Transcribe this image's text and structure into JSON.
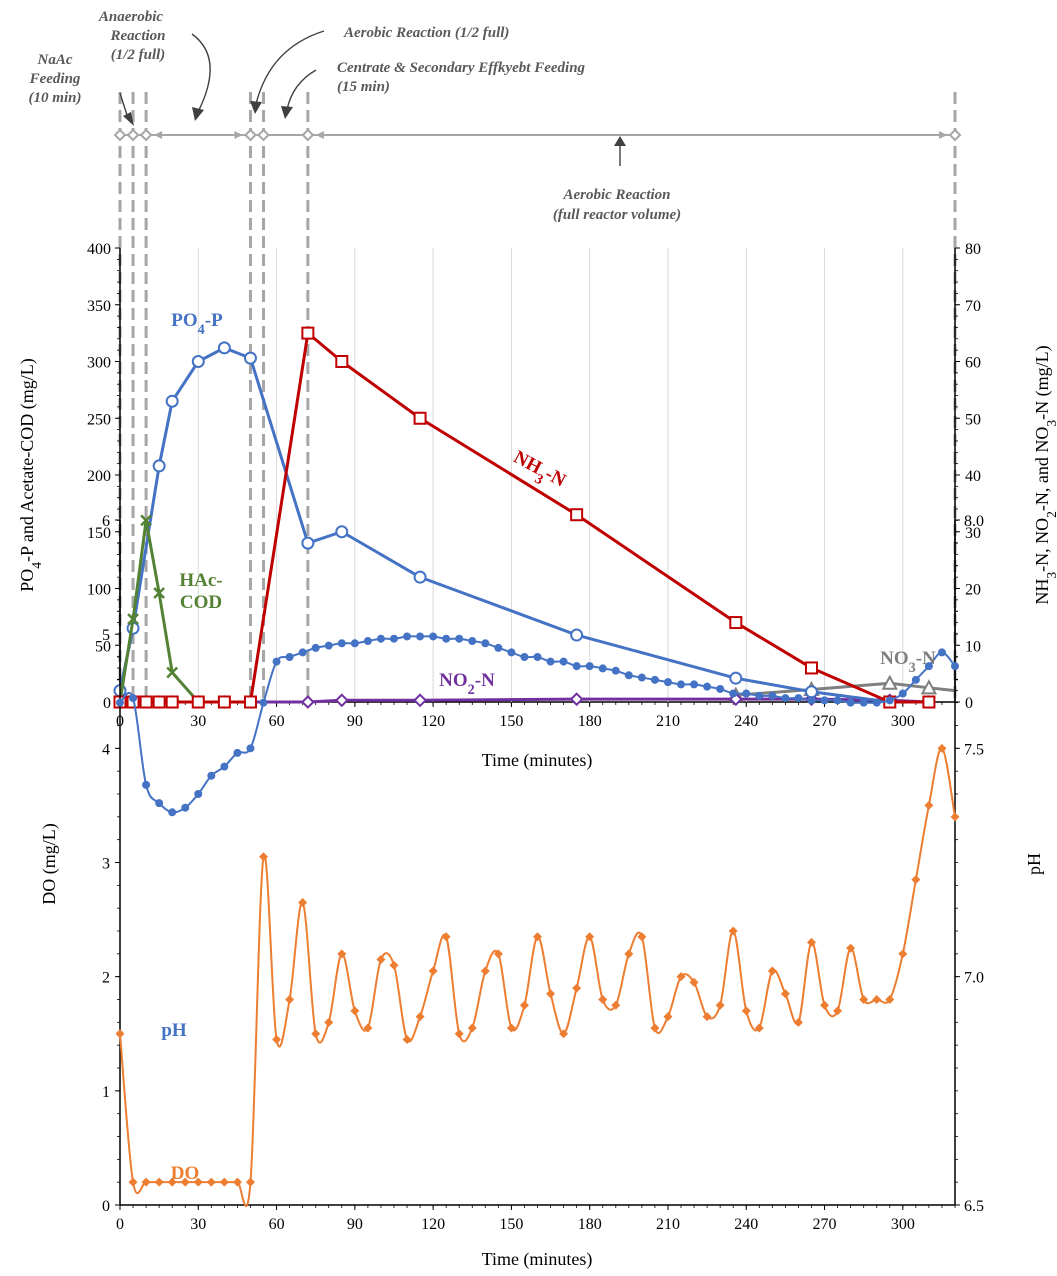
{
  "colors": {
    "po4": "#4472C4",
    "nh3": "#C00000",
    "hac": "#548235",
    "no2": "#7030A0",
    "no3": "#7F7F7F",
    "ph": "#4472C4",
    "do": "#ED7D31",
    "phase": "#A6A6A6"
  },
  "phases": {
    "naac": [
      "NaAc",
      "Feeding",
      "(10 min)"
    ],
    "anaerobic": [
      "Anaerobic",
      "Reaction",
      "(1/2 full)"
    ],
    "aerobic_half": "Aerobic Reaction (1/2 full)",
    "centrate": [
      "Centrate & Secondary Effkyebt Feeding",
      "(15 min)"
    ],
    "aerobic_full": [
      "Aerobic Reaction",
      "(full reactor volume)"
    ],
    "boundaries": [
      0,
      5,
      10,
      50,
      55,
      72,
      320
    ]
  },
  "chart_data": [
    {
      "type": "line",
      "xlabel": "Time (minutes)",
      "ylabel": "PO4-P and Acetate-COD (mg/L)",
      "y2label": "NH3-N, NO2-N, and NO3-N (mg/L)",
      "xlim": [
        0,
        320
      ],
      "ylim": [
        0,
        400
      ],
      "y2lim": [
        0,
        80
      ],
      "xticks": [
        0,
        30,
        60,
        90,
        120,
        150,
        180,
        210,
        240,
        270,
        300
      ],
      "yticks": [
        0,
        50,
        100,
        150,
        200,
        250,
        300,
        350,
        400
      ],
      "y2ticks": [
        0,
        10,
        20,
        30,
        40,
        50,
        60,
        70,
        80
      ],
      "series": [
        {
          "name": "PO4-P",
          "axis": "left",
          "marker": "circle",
          "x": [
            0,
            5,
            15,
            20,
            30,
            40,
            50,
            72,
            85,
            115,
            175,
            236,
            265,
            295,
            310
          ],
          "y": [
            10,
            65,
            208,
            265,
            300,
            312,
            303,
            140,
            150,
            110,
            59,
            21,
            9,
            0,
            0
          ]
        },
        {
          "name": "HAc-COD",
          "axis": "left",
          "marker": "x",
          "x": [
            0,
            5,
            10,
            15,
            20,
            30,
            40,
            50
          ],
          "y": [
            0,
            73,
            160,
            96,
            26,
            0,
            0,
            0
          ]
        },
        {
          "name": "NH3-N",
          "axis": "right",
          "marker": "square",
          "x": [
            0,
            5,
            10,
            15,
            20,
            30,
            40,
            50,
            72,
            85,
            115,
            175,
            236,
            265,
            295,
            310
          ],
          "y": [
            0,
            0,
            0,
            0,
            0,
            0,
            0,
            0,
            65,
            60,
            50,
            33,
            14,
            6,
            0,
            0
          ]
        },
        {
          "name": "NO2-N",
          "axis": "right",
          "marker": "diamond",
          "x": [
            0,
            5,
            10,
            15,
            20,
            30,
            40,
            50,
            72,
            85,
            115,
            175,
            236,
            265,
            295,
            310
          ],
          "y": [
            0,
            0,
            0,
            0,
            0,
            0,
            0,
            0,
            0,
            0.3,
            0.3,
            0.5,
            0.5,
            0.5,
            0.3,
            0
          ]
        },
        {
          "name": "NO3-N",
          "axis": "right",
          "marker": "triangle",
          "x": [
            236,
            265,
            295,
            310,
            320
          ],
          "y": [
            1.2,
            2.2,
            3.3,
            2.5,
            2
          ]
        }
      ]
    },
    {
      "type": "line",
      "xlabel": "Time (minutes)",
      "ylabel": "DO (mg/L)",
      "y2label": "pH",
      "xlim": [
        0,
        320
      ],
      "ylim": [
        0,
        6
      ],
      "y2lim": [
        6.5,
        8.0
      ],
      "xticks": [
        0,
        30,
        60,
        90,
        120,
        150,
        180,
        210,
        240,
        270,
        300
      ],
      "yticks": [
        0,
        1,
        2,
        3,
        4,
        5,
        6
      ],
      "y2ticks": [
        "6.5",
        "7.0",
        "7.5",
        "8.0"
      ],
      "series": [
        {
          "name": "pH",
          "axis": "right",
          "marker": "circle",
          "x": [
            0,
            5,
            10,
            15,
            20,
            25,
            30,
            35,
            40,
            45,
            50,
            55,
            60,
            65,
            70,
            75,
            80,
            85,
            90,
            95,
            100,
            105,
            110,
            115,
            120,
            125,
            130,
            135,
            140,
            145,
            150,
            155,
            160,
            165,
            170,
            175,
            180,
            185,
            190,
            195,
            200,
            205,
            210,
            215,
            220,
            225,
            230,
            235,
            240,
            245,
            250,
            255,
            260,
            265,
            270,
            275,
            280,
            285,
            290,
            295,
            300,
            305,
            310,
            315,
            320
          ],
          "y": [
            7.6,
            7.61,
            7.42,
            7.38,
            7.36,
            7.37,
            7.4,
            7.44,
            7.46,
            7.49,
            7.5,
            7.6,
            7.69,
            7.7,
            7.71,
            7.72,
            7.725,
            7.73,
            7.73,
            7.735,
            7.74,
            7.74,
            7.745,
            7.745,
            7.745,
            7.74,
            7.74,
            7.735,
            7.73,
            7.72,
            7.71,
            7.7,
            7.7,
            7.69,
            7.69,
            7.68,
            7.68,
            7.675,
            7.67,
            7.66,
            7.655,
            7.65,
            7.645,
            7.64,
            7.64,
            7.635,
            7.63,
            7.62,
            7.62,
            7.615,
            7.615,
            7.61,
            7.61,
            7.605,
            7.605,
            7.605,
            7.6,
            7.6,
            7.6,
            7.605,
            7.62,
            7.65,
            7.68,
            7.71,
            7.68
          ]
        },
        {
          "name": "DO",
          "axis": "left",
          "marker": "diamond",
          "x": [
            0,
            5,
            10,
            15,
            20,
            25,
            30,
            35,
            40,
            45,
            50,
            55,
            60,
            65,
            70,
            75,
            80,
            85,
            90,
            95,
            100,
            105,
            110,
            115,
            120,
            125,
            130,
            135,
            140,
            145,
            150,
            155,
            160,
            165,
            170,
            175,
            180,
            185,
            190,
            195,
            200,
            205,
            210,
            215,
            220,
            225,
            230,
            235,
            240,
            245,
            250,
            255,
            260,
            265,
            270,
            275,
            280,
            285,
            290,
            295,
            300,
            305,
            310,
            315,
            320
          ],
          "y": [
            1.5,
            0.2,
            0.2,
            0.2,
            0.2,
            0.2,
            0.2,
            0.2,
            0.2,
            0.2,
            0.2,
            3.05,
            1.45,
            1.8,
            2.65,
            1.5,
            1.6,
            2.2,
            1.7,
            1.55,
            2.15,
            2.1,
            1.45,
            1.65,
            2.05,
            2.35,
            1.5,
            1.55,
            2.05,
            2.2,
            1.55,
            1.75,
            2.35,
            1.85,
            1.5,
            1.9,
            2.35,
            1.8,
            1.75,
            2.2,
            2.35,
            1.55,
            1.65,
            2.0,
            1.95,
            1.65,
            1.75,
            2.4,
            1.7,
            1.55,
            2.05,
            1.85,
            1.6,
            2.3,
            1.75,
            1.7,
            2.25,
            1.8,
            1.8,
            1.8,
            2.2,
            2.85,
            3.5,
            4.0,
            3.4
          ]
        }
      ]
    }
  ]
}
